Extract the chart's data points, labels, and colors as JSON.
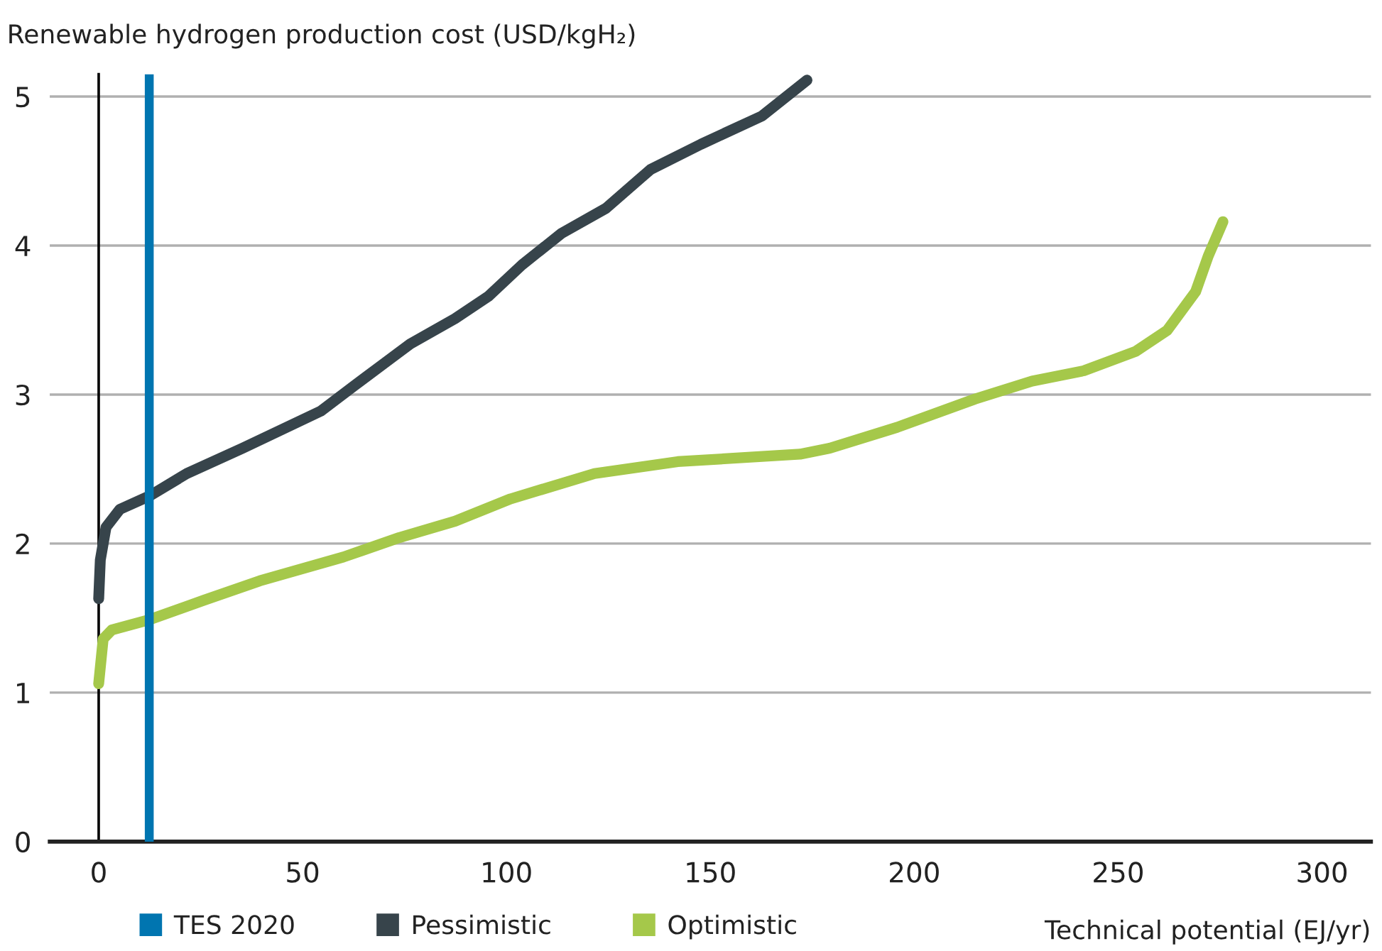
{
  "chart_data": {
    "type": "line",
    "ylabel": "Renewable hydrogen production cost (USD/kgH₂)",
    "xlabel": "Technical potential (EJ/yr)",
    "xlim": [
      -12,
      312
    ],
    "xticks": [
      0,
      50,
      100,
      150,
      200,
      250,
      300
    ],
    "ylim": [
      0,
      5.15
    ],
    "yticks": [
      0,
      1,
      2,
      3,
      4,
      5
    ],
    "grid": "y",
    "legend": "bottom",
    "marker": "none",
    "line_style": "solid",
    "ref_lines": [
      {
        "axis": "x",
        "value": 12.4,
        "label": "TES 2020",
        "color": "#0075b0"
      }
    ],
    "series": [
      {
        "name": "Pessimistic",
        "color": "#37444b",
        "x": [
          0,
          0.4,
          1.8,
          5.2,
          12.5,
          21.6,
          35.3,
          54.5,
          62.7,
          76.4,
          87.4,
          95.6,
          103.8,
          113.4,
          124.4,
          135.3,
          147.7,
          162.7,
          173.7
        ],
        "values": [
          1.63,
          1.89,
          2.11,
          2.23,
          2.32,
          2.47,
          2.64,
          2.89,
          3.06,
          3.34,
          3.51,
          3.66,
          3.87,
          4.08,
          4.25,
          4.51,
          4.68,
          4.87,
          5.11
        ]
      },
      {
        "name": "Optimistic",
        "color": "#a5c84a",
        "x": [
          0,
          1.1,
          3.2,
          12.5,
          25.8,
          39.5,
          60,
          73.7,
          87.4,
          101,
          121.6,
          142,
          172,
          179.3,
          195.8,
          214.9,
          228.9,
          241.6,
          254.3,
          262,
          269,
          272.1,
          275.7
        ],
        "values": [
          1.06,
          1.36,
          1.42,
          1.49,
          1.62,
          1.75,
          1.91,
          2.04,
          2.15,
          2.3,
          2.47,
          2.55,
          2.6,
          2.64,
          2.78,
          2.97,
          3.09,
          3.16,
          3.29,
          3.43,
          3.69,
          3.93,
          4.16
        ]
      }
    ]
  }
}
